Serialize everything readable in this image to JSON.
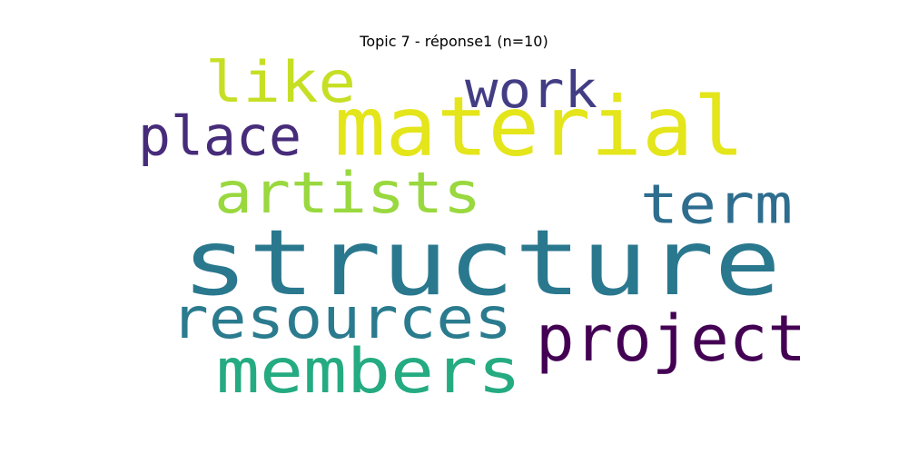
{
  "title": "Topic 7 - réponse1 (n=10)",
  "words": [
    {
      "text": "structure",
      "color": "#2a788e"
    },
    {
      "text": "material",
      "color": "#e4e51a"
    },
    {
      "text": "members",
      "color": "#25ab81"
    },
    {
      "text": "resources",
      "color": "#2a7b8e"
    },
    {
      "text": "project",
      "color": "#440154"
    },
    {
      "text": "artists",
      "color": "#99d83e"
    },
    {
      "text": "term",
      "color": "#2e6d8e"
    },
    {
      "text": "like",
      "color": "#c6df25"
    },
    {
      "text": "place",
      "color": "#472c7a"
    },
    {
      "text": "work",
      "color": "#423d84"
    }
  ]
}
